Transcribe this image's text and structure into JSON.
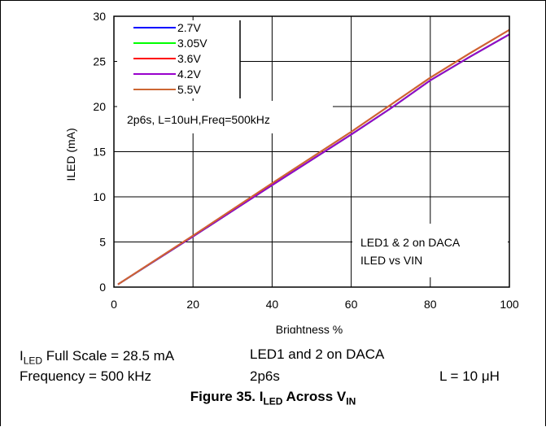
{
  "chart_data": {
    "type": "line",
    "xlabel": "Brightness %",
    "ylabel": "ILED (mA)",
    "xlim": [
      0,
      100
    ],
    "ylim": [
      0,
      30
    ],
    "xticks": [
      0,
      20,
      40,
      60,
      80,
      100
    ],
    "yticks": [
      0,
      5,
      10,
      15,
      20,
      25,
      30
    ],
    "grid": true,
    "legend_position": "top-left",
    "x": [
      1,
      20,
      40,
      60,
      70,
      80,
      90,
      100
    ],
    "series": [
      {
        "name": "2.7V",
        "color": "#0000ff",
        "values": [
          0.3,
          5.6,
          11.3,
          16.9,
          19.8,
          22.9,
          25.5,
          28.0
        ]
      },
      {
        "name": "3.05V",
        "color": "#00ff00",
        "values": [
          0.3,
          5.6,
          11.3,
          16.9,
          19.8,
          22.9,
          25.5,
          28.0
        ]
      },
      {
        "name": "3.6V",
        "color": "#ff0000",
        "values": [
          0.3,
          5.7,
          11.5,
          17.2,
          20.2,
          23.2,
          25.9,
          28.5
        ]
      },
      {
        "name": "4.2V",
        "color": "#9900cc",
        "values": [
          0.3,
          5.6,
          11.3,
          16.9,
          19.8,
          22.9,
          25.5,
          28.0
        ]
      },
      {
        "name": "5.5V",
        "color": "#cc6633",
        "values": [
          0.3,
          5.7,
          11.5,
          17.2,
          20.2,
          23.2,
          25.9,
          28.5
        ]
      }
    ],
    "annotations": [
      "2p6s, L=10uH,Freq=500kHz",
      "LED1 & 2 on DACA",
      "ILED vs VIN"
    ]
  },
  "captions": {
    "iled_prefix": "I",
    "iled_sub": "LED",
    "iled_rest": " Full Scale = 28.5 mA",
    "led_daca": "LED1 and 2 on DACA",
    "frequency": "Frequency = 500 kHz",
    "config": "2p6s",
    "inductance": "L = 10 μH"
  },
  "figure": {
    "prefix": "Figure 35. I",
    "sub1": "LED",
    "mid": " Across V",
    "sub2": "IN"
  }
}
